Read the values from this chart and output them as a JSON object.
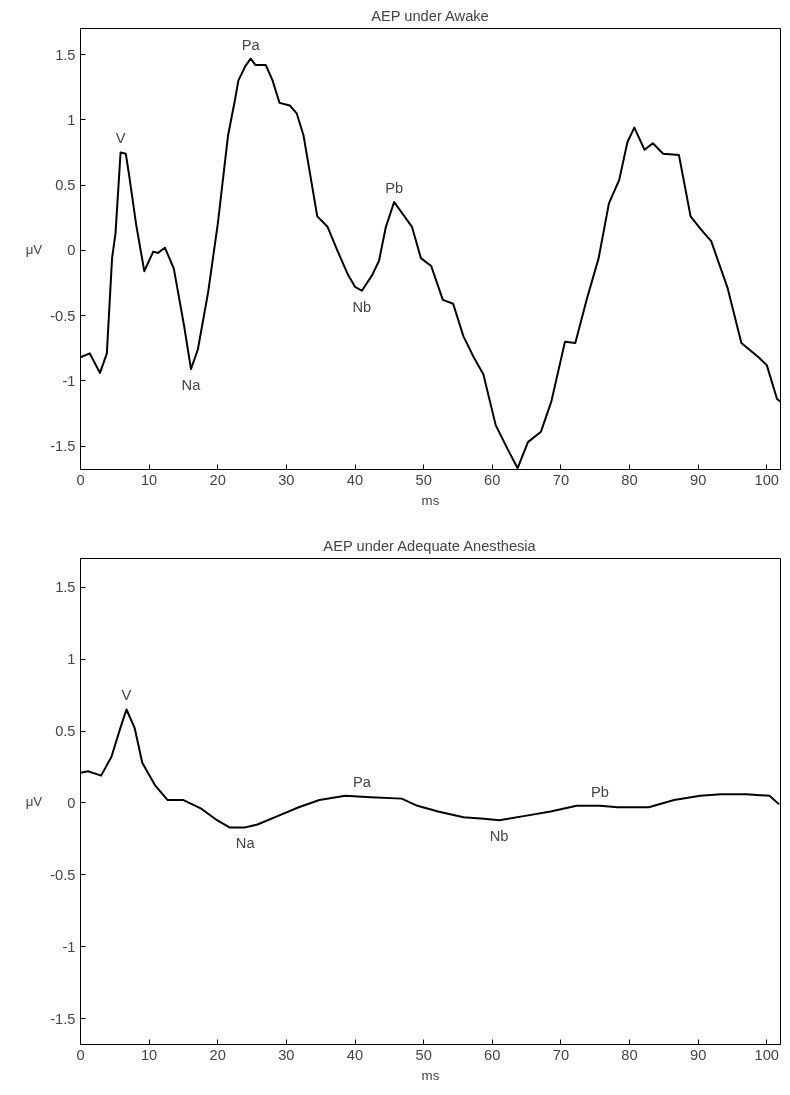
{
  "chart_data": [
    {
      "type": "line",
      "title": "AEP under Awake",
      "xlabel": "ms",
      "ylabel": "μV",
      "xlim": [
        0,
        102
      ],
      "ylim": [
        -1.68,
        1.7
      ],
      "xticks": [
        0,
        10,
        20,
        30,
        40,
        50,
        60,
        70,
        80,
        90,
        100
      ],
      "yticks": [
        -1.5,
        -1,
        -0.5,
        0,
        0.5,
        1,
        1.5
      ],
      "grid": false,
      "marker": "none",
      "line_style": "solid",
      "series": [
        {
          "color": "#000000",
          "x": [
            0,
            1.35,
            2.84,
            3.84,
            4.6,
            5.1,
            5.84,
            6.6,
            7.1,
            8.1,
            9.3,
            10.6,
            11.3,
            12.3,
            13.6,
            15.1,
            16.1,
            17.1,
            18.6,
            20.0,
            21.5,
            22.5,
            23.0,
            24.0,
            24.8,
            25.5,
            27.0,
            28.0,
            29.0,
            30.5,
            31.5,
            32.5,
            33.5,
            34.5,
            36.0,
            37.5,
            39.0,
            40.0,
            41.0,
            42.5,
            43.5,
            44.5,
            45.7,
            48.3,
            49.6,
            51.1,
            52.8,
            54.3,
            55.8,
            57.3,
            58.7,
            60.5,
            62.2,
            63.7,
            65.2,
            67.1,
            68.6,
            70.6,
            72.1,
            73.8,
            75.5,
            77.0,
            78.5,
            79.7,
            80.7,
            82.2,
            83.4,
            84.9,
            87.2,
            88.9,
            90.4,
            91.9,
            94.3,
            96.3,
            98.8,
            100.0,
            101.5,
            102
          ],
          "values": [
            -0.82,
            -0.79,
            -0.94,
            -0.79,
            -0.06,
            0.13,
            0.75,
            0.74,
            0.57,
            0.2,
            -0.16,
            -0.01,
            -0.02,
            0.02,
            -0.14,
            -0.58,
            -0.91,
            -0.76,
            -0.32,
            0.2,
            0.88,
            1.15,
            1.3,
            1.41,
            1.47,
            1.42,
            1.42,
            1.3,
            1.13,
            1.11,
            1.05,
            0.88,
            0.57,
            0.26,
            0.18,
            -0.01,
            -0.19,
            -0.28,
            -0.31,
            -0.19,
            -0.08,
            0.18,
            0.37,
            0.18,
            -0.06,
            -0.12,
            -0.38,
            -0.41,
            -0.66,
            -0.82,
            -0.95,
            -1.34,
            -1.52,
            -1.67,
            -1.47,
            -1.39,
            -1.16,
            -0.7,
            -0.71,
            -0.37,
            -0.06,
            0.36,
            0.54,
            0.83,
            0.94,
            0.77,
            0.82,
            0.74,
            0.73,
            0.26,
            0.16,
            0.07,
            -0.29,
            -0.71,
            -0.82,
            -0.88,
            -1.14,
            -1.16
          ]
        }
      ],
      "annotations": [
        {
          "text": "V",
          "x": 5.84,
          "y": 0.75
        },
        {
          "text": "Na",
          "x": 16.1,
          "y": -0.91
        },
        {
          "text": "Pa",
          "x": 24.8,
          "y": 1.47
        },
        {
          "text": "Nb",
          "x": 41.0,
          "y": -0.31
        },
        {
          "text": "Pb",
          "x": 45.7,
          "y": 0.37
        }
      ]
    },
    {
      "type": "line",
      "title": "AEP under Adequate Anesthesia",
      "xlabel": "ms",
      "ylabel": "μV",
      "xlim": [
        0,
        102
      ],
      "ylim": [
        -1.68,
        1.7
      ],
      "xticks": [
        0,
        10,
        20,
        30,
        40,
        50,
        60,
        70,
        80,
        90,
        100
      ],
      "yticks": [
        -1.5,
        -1,
        -0.5,
        0,
        0.5,
        1,
        1.5
      ],
      "grid": false,
      "marker": "none",
      "line_style": "solid",
      "series": [
        {
          "color": "#000000",
          "x": [
            0,
            1.1,
            3.0,
            4.5,
            5.8,
            6.7,
            7.9,
            9.0,
            10.9,
            12.7,
            15.0,
            17.6,
            19.9,
            21.7,
            24.0,
            25.8,
            28.8,
            31.8,
            34.8,
            38.6,
            42.3,
            46.8,
            49.1,
            52.1,
            55.8,
            58.8,
            61.0,
            64.8,
            68.5,
            72.3,
            75.7,
            78.3,
            82.8,
            86.5,
            90.3,
            93.3,
            97.0,
            100.4,
            101.8
          ],
          "values": [
            0.21,
            0.22,
            0.19,
            0.32,
            0.52,
            0.65,
            0.52,
            0.28,
            0.12,
            0.02,
            0.02,
            -0.04,
            -0.12,
            -0.17,
            -0.17,
            -0.15,
            -0.09,
            -0.03,
            0.02,
            0.05,
            0.04,
            0.03,
            -0.02,
            -0.06,
            -0.1,
            -0.11,
            -0.12,
            -0.09,
            -0.06,
            -0.02,
            -0.02,
            -0.03,
            -0.03,
            0.02,
            0.05,
            0.06,
            0.06,
            0.05,
            -0.01
          ]
        }
      ],
      "annotations": [
        {
          "text": "V",
          "x": 6.7,
          "y": 0.65
        },
        {
          "text": "Na",
          "x": 24.0,
          "y": -0.17
        },
        {
          "text": "Pa",
          "x": 41.0,
          "y": 0.05
        },
        {
          "text": "Nb",
          "x": 61.0,
          "y": -0.12
        },
        {
          "text": "Pb",
          "x": 75.7,
          "y": -0.02
        }
      ]
    }
  ]
}
